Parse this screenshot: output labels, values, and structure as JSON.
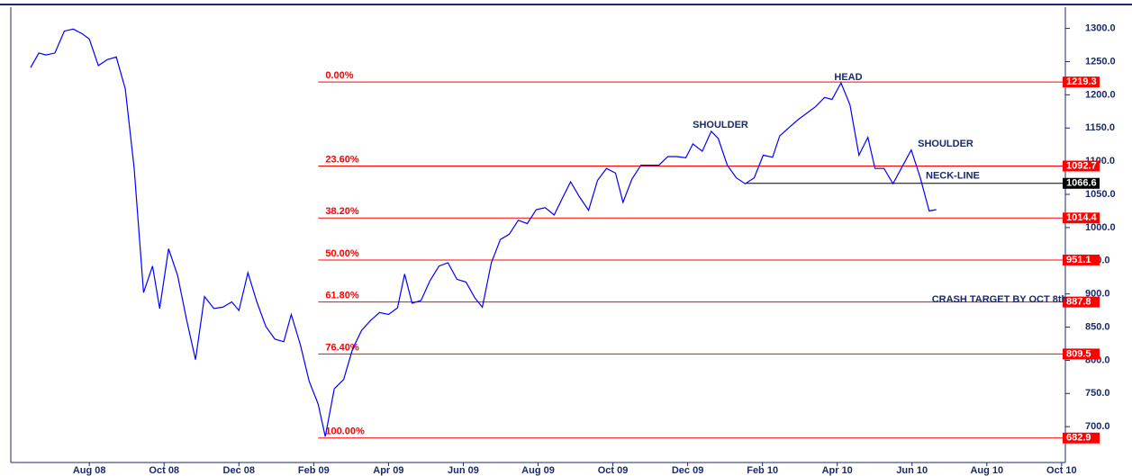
{
  "chart_data": {
    "type": "line",
    "x": [
      5.43,
      5.65,
      5.84,
      6.08,
      6.33,
      6.57,
      6.81,
      7.0,
      7.24,
      7.48,
      7.72,
      7.96,
      8.2,
      8.45,
      8.69,
      8.88,
      9.12,
      9.36,
      9.6,
      9.84,
      10.08,
      10.33,
      10.57,
      10.81,
      11.0,
      11.24,
      11.48,
      11.72,
      11.96,
      12.2,
      12.4,
      12.64,
      12.88,
      13.12,
      13.31,
      13.55,
      13.8,
      14.04,
      14.28,
      14.52,
      14.76,
      15.0,
      15.24,
      15.43,
      15.63,
      15.87,
      16.11,
      16.35,
      16.59,
      16.83,
      17.07,
      17.31,
      17.51,
      17.75,
      17.99,
      18.23,
      18.47,
      18.71,
      18.95,
      19.19,
      19.43,
      19.63,
      19.87,
      20.11,
      20.35,
      20.59,
      20.83,
      21.07,
      21.27,
      21.51,
      21.75,
      21.99,
      22.23,
      22.47,
      22.71,
      22.95,
      23.14,
      23.39,
      23.63,
      23.82,
      24.06,
      24.3,
      24.54,
      24.78,
      25.02,
      25.27,
      25.46,
      25.7,
      25.94,
      26.18,
      26.42,
      26.66,
      26.86,
      27.1,
      27.34,
      27.58,
      27.82,
      28.01,
      28.25,
      28.49,
      28.73,
      28.98,
      29.22,
      29.46,
      29.65
    ],
    "series": [
      {
        "color": "#0000ff",
        "values": [
          1241,
          1263,
          1260,
          1263,
          1296,
          1299,
          1292,
          1284,
          1244,
          1253,
          1257,
          1209,
          1089,
          902,
          942,
          878,
          968,
          928,
          861,
          801,
          896,
          878,
          880,
          888,
          875,
          932,
          888,
          851,
          832,
          828,
          869,
          824,
          768,
          734,
          685,
          757,
          771,
          817,
          845,
          860,
          872,
          869,
          879,
          930,
          886,
          890,
          920,
          942,
          947,
          922,
          918,
          894,
          880,
          947,
          982,
          990,
          1011,
          1006,
          1027,
          1030,
          1019,
          1042,
          1069,
          1046,
          1026,
          1071,
          1089,
          1082,
          1038,
          1073,
          1094,
          1094,
          1094,
          1107,
          1107,
          1105,
          1126,
          1115,
          1145,
          1134,
          1094,
          1075,
          1066,
          1075,
          1109,
          1106,
          1138,
          1150,
          1162,
          1172,
          1182,
          1196,
          1193,
          1218,
          1185,
          1109,
          1136,
          1089,
          1089,
          1066,
          1091,
          1117,
          1075,
          1025,
          1027
        ]
      }
    ],
    "xlim": [
      4.9,
      33.1
    ],
    "xticks": [
      {
        "value": 7,
        "label": "Aug 08"
      },
      {
        "value": 9,
        "label": "Oct 08"
      },
      {
        "value": 11,
        "label": "Dec 08"
      },
      {
        "value": 13,
        "label": "Feb 09"
      },
      {
        "value": 15,
        "label": "Apr 09"
      },
      {
        "value": 17,
        "label": "Jun 09"
      },
      {
        "value": 19,
        "label": "Aug 09"
      },
      {
        "value": 21,
        "label": "Oct 09"
      },
      {
        "value": 23,
        "label": "Dec 09"
      },
      {
        "value": 25,
        "label": "Feb 10"
      },
      {
        "value": 27,
        "label": "Apr 10"
      },
      {
        "value": 29,
        "label": "Jun 10"
      },
      {
        "value": 31,
        "label": "Aug 10"
      },
      {
        "value": 33,
        "label": "Oct 10"
      }
    ],
    "ylim": [
      646,
      1332
    ],
    "yticks": [
      {
        "value": 700,
        "label": "700.0"
      },
      {
        "value": 750,
        "label": "750.0"
      },
      {
        "value": 800,
        "label": "800.0"
      },
      {
        "value": 850,
        "label": "850.0"
      },
      {
        "value": 900,
        "label": "900.0"
      },
      {
        "value": 950,
        "label": "950.0"
      },
      {
        "value": 1000,
        "label": "1000.0"
      },
      {
        "value": 1050,
        "label": "1050.0"
      },
      {
        "value": 1100,
        "label": "1100.0"
      },
      {
        "value": 1150,
        "label": "1150.0"
      },
      {
        "value": 1200,
        "label": "1200.0"
      },
      {
        "value": 1250,
        "label": "1250.0"
      },
      {
        "value": 1300,
        "label": "1300.0"
      }
    ],
    "fib_color": "#ff0000",
    "fib_start": 13.12,
    "fib_levels": [
      {
        "label": "0.00%",
        "value": 1219.3
      },
      {
        "label": "23.60%",
        "value": 1092.7
      },
      {
        "label": "38.20%",
        "value": 1014.4
      },
      {
        "label": "50.00%",
        "value": 951.1
      },
      {
        "label": "61.80%",
        "value": 887.8
      },
      {
        "label": "76.40%",
        "value": 809.5
      },
      {
        "label": "100.00%",
        "value": 682.9
      }
    ],
    "neckline": {
      "label": "NECK-LINE",
      "value": 1066.6,
      "start": 24.54
    },
    "annotations": [
      "SHOULDER",
      "HEAD",
      "SHOULDER",
      "CRASH TARGET BY OCT 8th"
    ]
  }
}
